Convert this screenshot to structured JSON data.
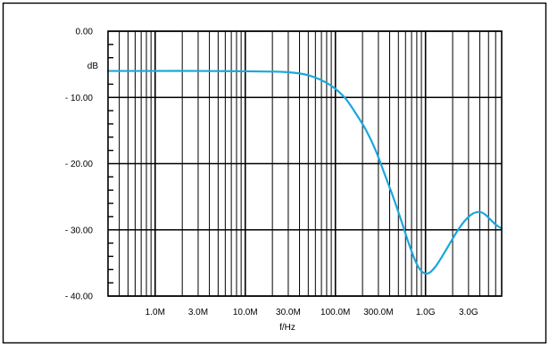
{
  "chart_data": {
    "type": "line",
    "xlabel": "f/Hz",
    "ylabel": "dB",
    "x_scale": "log",
    "xlim": [
      300000,
      7000000000
    ],
    "ylim": [
      -40,
      0
    ],
    "x_ticks": [
      {
        "value": 1000000,
        "label": "1.0M"
      },
      {
        "value": 3000000,
        "label": "3.0M"
      },
      {
        "value": 10000000,
        "label": "10.0M"
      },
      {
        "value": 30000000,
        "label": "30.0M"
      },
      {
        "value": 100000000,
        "label": "100.0M"
      },
      {
        "value": 300000000,
        "label": "300.0M"
      },
      {
        "value": 1000000000,
        "label": "1.0G"
      },
      {
        "value": 3000000000,
        "label": "3.0G"
      }
    ],
    "y_ticks": [
      {
        "value": 0,
        "label": "0.00"
      },
      {
        "value": -10,
        "label": "- 10.00"
      },
      {
        "value": -20,
        "label": "- 20.00"
      },
      {
        "value": -30,
        "label": "- 30.00"
      },
      {
        "value": -40,
        "label": "- 40.00"
      }
    ],
    "grid": true,
    "series": [
      {
        "color": "#1aa7dc",
        "x": [
          300000,
          1000000,
          3000000,
          10000000,
          20000000,
          30000000,
          45000000,
          60000000,
          80000000,
          100000000,
          130000000,
          170000000,
          220000000,
          280000000,
          350000000,
          450000000,
          550000000,
          650000000,
          750000000,
          850000000,
          950000000,
          1050000000,
          1150000000,
          1300000000,
          1500000000,
          1800000000,
          2200000000,
          2700000000,
          3300000000,
          4000000000,
          4600000000,
          5300000000,
          6000000000,
          7000000000
        ],
        "y": [
          -6.0,
          -6.0,
          -6.0,
          -6.05,
          -6.1,
          -6.2,
          -6.5,
          -7.0,
          -7.8,
          -8.7,
          -10.2,
          -12.5,
          -15.0,
          -18.0,
          -21.5,
          -25.5,
          -29.0,
          -32.0,
          -34.3,
          -35.8,
          -36.5,
          -36.6,
          -36.3,
          -35.5,
          -34.2,
          -32.4,
          -30.4,
          -28.7,
          -27.6,
          -27.3,
          -27.7,
          -28.5,
          -29.2,
          -29.8
        ]
      }
    ]
  }
}
